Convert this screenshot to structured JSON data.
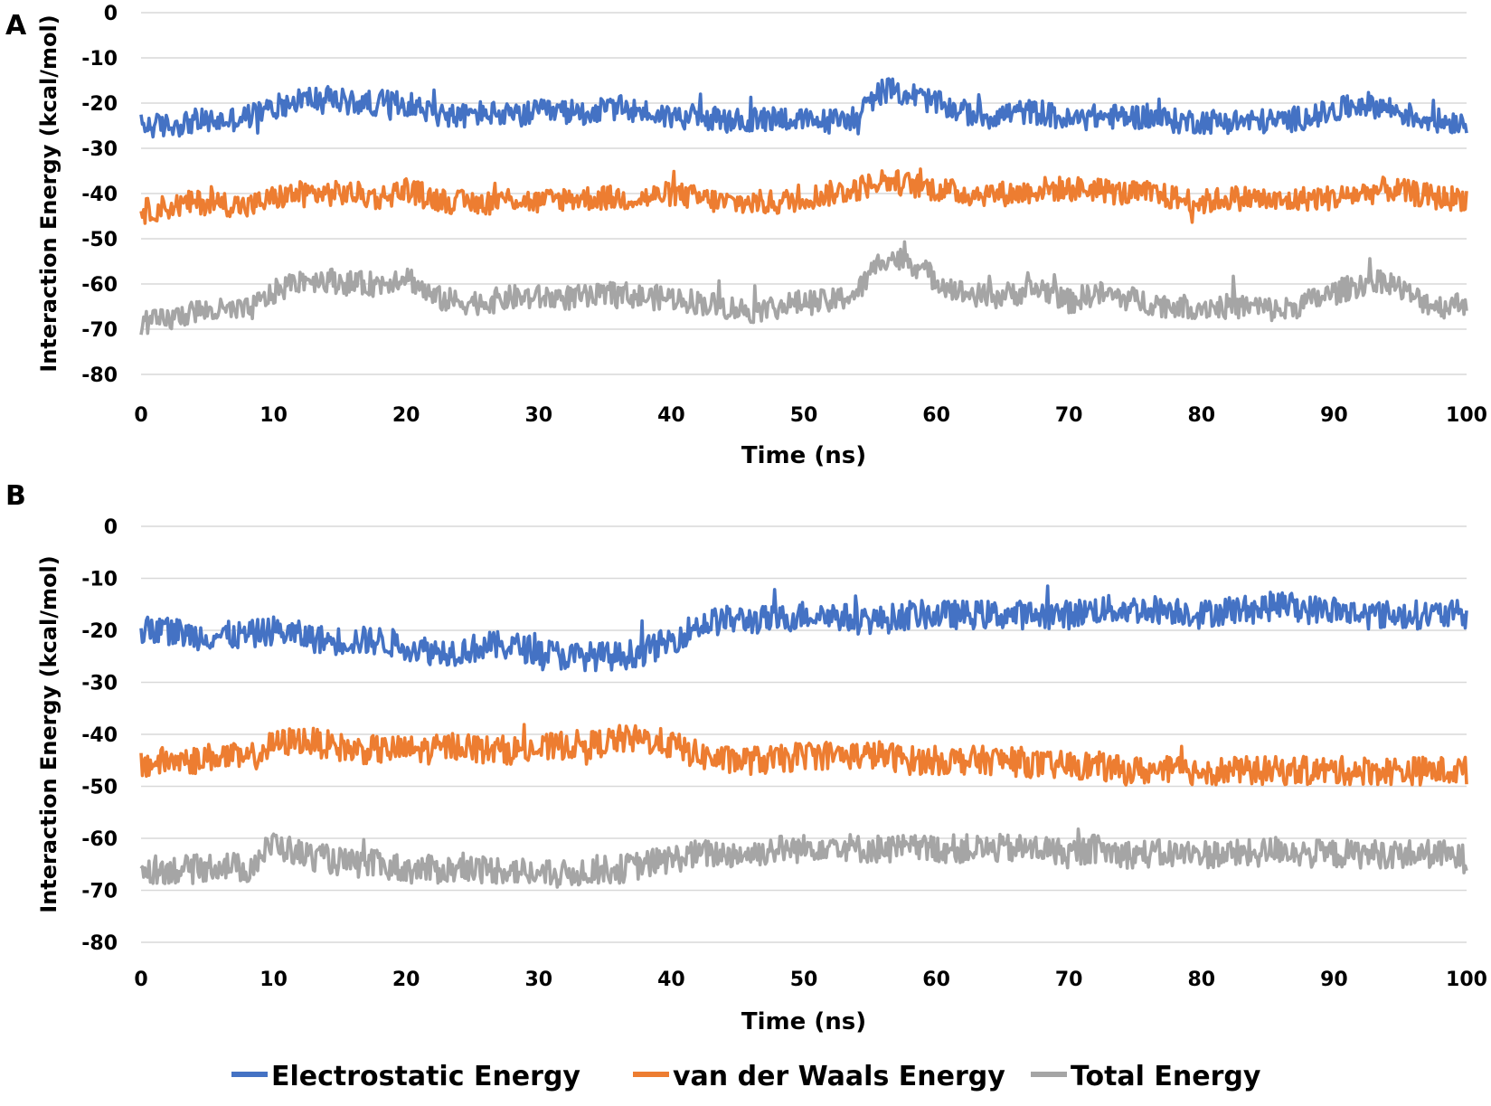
{
  "chart_data": [
    {
      "type": "line",
      "panel_label": "A",
      "xlabel": "Time (ns)",
      "ylabel": "Interaction Energy (kcal/mol)",
      "xlim": [
        0,
        100
      ],
      "ylim": [
        -80,
        0
      ],
      "x_ticks": [
        "0",
        "10",
        "20",
        "30",
        "40",
        "50",
        "60",
        "70",
        "80",
        "90",
        "100"
      ],
      "y_ticks": [
        "0",
        "-10",
        "-20",
        "-30",
        "-40",
        "-50",
        "-60",
        "-70",
        "-80"
      ],
      "grid": true,
      "series": [
        {
          "name": "Electrostatic Energy",
          "color": "#4472C4",
          "x": [
            0,
            2,
            4,
            6,
            8,
            10,
            12,
            14,
            16,
            18,
            20,
            22,
            24,
            26,
            28,
            30,
            32,
            34,
            36,
            38,
            40,
            42,
            44,
            46,
            48,
            50,
            52,
            54,
            56,
            58,
            60,
            62,
            64,
            66,
            68,
            70,
            72,
            74,
            76,
            78,
            80,
            82,
            84,
            86,
            88,
            90,
            92,
            94,
            96,
            98,
            100
          ],
          "values": [
            -25,
            -25,
            -24,
            -24,
            -23,
            -21,
            -19,
            -19,
            -20,
            -20,
            -20,
            -22,
            -23,
            -22,
            -23,
            -22,
            -22,
            -22,
            -21,
            -22,
            -23,
            -23,
            -24,
            -24,
            -23,
            -24,
            -24,
            -23,
            -17,
            -18,
            -20,
            -22,
            -23,
            -22,
            -22,
            -24,
            -23,
            -23,
            -23,
            -24,
            -24,
            -24,
            -24,
            -24,
            -23,
            -22,
            -20,
            -21,
            -23,
            -24,
            -24
          ]
        },
        {
          "name": "van der Waals Energy",
          "color": "#ED7D31",
          "x": [
            0,
            2,
            4,
            6,
            8,
            10,
            12,
            14,
            16,
            18,
            20,
            22,
            24,
            26,
            28,
            30,
            32,
            34,
            36,
            38,
            40,
            42,
            44,
            46,
            48,
            50,
            52,
            54,
            56,
            58,
            60,
            62,
            64,
            66,
            68,
            70,
            72,
            74,
            76,
            78,
            80,
            82,
            84,
            86,
            88,
            90,
            92,
            94,
            96,
            98,
            100
          ],
          "values": [
            -44,
            -43,
            -42,
            -42,
            -43,
            -41,
            -40,
            -40,
            -40,
            -41,
            -39,
            -41,
            -42,
            -42,
            -41,
            -42,
            -41,
            -41,
            -41,
            -41,
            -40,
            -41,
            -42,
            -42,
            -42,
            -41,
            -40,
            -39,
            -37,
            -38,
            -39,
            -40,
            -40,
            -40,
            -39,
            -39,
            -39,
            -40,
            -40,
            -41,
            -42,
            -41,
            -41,
            -42,
            -41,
            -41,
            -40,
            -39,
            -40,
            -41,
            -41
          ]
        },
        {
          "name": "Total Energy",
          "color": "#A5A5A5",
          "x": [
            0,
            2,
            4,
            6,
            8,
            10,
            12,
            14,
            16,
            18,
            20,
            22,
            24,
            26,
            28,
            30,
            32,
            34,
            36,
            38,
            40,
            42,
            44,
            46,
            48,
            50,
            52,
            54,
            56,
            58,
            60,
            62,
            64,
            66,
            68,
            70,
            72,
            74,
            76,
            78,
            80,
            82,
            84,
            86,
            88,
            90,
            92,
            94,
            96,
            98,
            100
          ],
          "values": [
            -69,
            -68,
            -66,
            -66,
            -66,
            -62,
            -59,
            -59,
            -60,
            -60,
            -58,
            -63,
            -64,
            -64,
            -63,
            -63,
            -63,
            -63,
            -62,
            -63,
            -63,
            -64,
            -65,
            -66,
            -65,
            -64,
            -64,
            -62,
            -54,
            -55,
            -59,
            -62,
            -63,
            -62,
            -61,
            -64,
            -62,
            -63,
            -64,
            -65,
            -65,
            -65,
            -65,
            -66,
            -64,
            -62,
            -60,
            -59,
            -63,
            -65,
            -64
          ]
        }
      ]
    },
    {
      "type": "line",
      "panel_label": "B",
      "xlabel": "Time (ns)",
      "ylabel": "Interaction Energy (kcal/mol)",
      "xlim": [
        0,
        100
      ],
      "ylim": [
        -80,
        0
      ],
      "x_ticks": [
        "0",
        "10",
        "20",
        "30",
        "40",
        "50",
        "60",
        "70",
        "80",
        "90",
        "100"
      ],
      "y_ticks": [
        "0",
        "-10",
        "-20",
        "-30",
        "-40",
        "-50",
        "-60",
        "-70",
        "-80"
      ],
      "grid": true,
      "series": [
        {
          "name": "Electrostatic Energy",
          "color": "#4472C4",
          "x": [
            0,
            2,
            4,
            6,
            8,
            10,
            12,
            14,
            16,
            18,
            20,
            22,
            24,
            26,
            28,
            30,
            32,
            34,
            36,
            38,
            40,
            42,
            44,
            46,
            48,
            50,
            52,
            54,
            56,
            58,
            60,
            62,
            64,
            66,
            68,
            70,
            72,
            74,
            76,
            78,
            80,
            82,
            84,
            86,
            88,
            90,
            92,
            94,
            96,
            98,
            100
          ],
          "values": [
            -20,
            -20,
            -21,
            -21,
            -21,
            -20,
            -21,
            -22,
            -22,
            -22,
            -23,
            -24,
            -24,
            -23,
            -23,
            -24,
            -25,
            -25,
            -25,
            -24,
            -22,
            -19,
            -18,
            -18,
            -18,
            -17,
            -17,
            -18,
            -18,
            -17,
            -17,
            -17,
            -17,
            -17,
            -17,
            -17,
            -16,
            -16,
            -16,
            -16,
            -17,
            -16,
            -16,
            -15,
            -16,
            -16,
            -17,
            -17,
            -17,
            -17,
            -17
          ]
        },
        {
          "name": "van der Waals Energy",
          "color": "#ED7D31",
          "x": [
            0,
            2,
            4,
            6,
            8,
            10,
            12,
            14,
            16,
            18,
            20,
            22,
            24,
            26,
            28,
            30,
            32,
            34,
            36,
            38,
            40,
            42,
            44,
            46,
            48,
            50,
            52,
            54,
            56,
            58,
            60,
            62,
            64,
            66,
            68,
            70,
            72,
            74,
            76,
            78,
            80,
            82,
            84,
            86,
            88,
            90,
            92,
            94,
            96,
            98,
            100
          ],
          "values": [
            -46,
            -45,
            -45,
            -44,
            -45,
            -42,
            -41,
            -42,
            -43,
            -43,
            -43,
            -43,
            -42,
            -43,
            -43,
            -43,
            -42,
            -42,
            -41,
            -41,
            -42,
            -44,
            -45,
            -45,
            -45,
            -44,
            -44,
            -44,
            -44,
            -45,
            -45,
            -45,
            -45,
            -45,
            -46,
            -46,
            -46,
            -47,
            -47,
            -47,
            -47,
            -47,
            -47,
            -47,
            -47,
            -47,
            -47,
            -47,
            -47,
            -47,
            -47
          ]
        },
        {
          "name": "Total Energy",
          "color": "#A5A5A5",
          "x": [
            0,
            2,
            4,
            6,
            8,
            10,
            12,
            14,
            16,
            18,
            20,
            22,
            24,
            26,
            28,
            30,
            32,
            34,
            36,
            38,
            40,
            42,
            44,
            46,
            48,
            50,
            52,
            54,
            56,
            58,
            60,
            62,
            64,
            66,
            68,
            70,
            72,
            74,
            76,
            78,
            80,
            82,
            84,
            86,
            88,
            90,
            92,
            94,
            96,
            98,
            100
          ],
          "values": [
            -66,
            -66,
            -66,
            -65,
            -66,
            -61,
            -63,
            -64,
            -65,
            -65,
            -66,
            -66,
            -66,
            -66,
            -66,
            -67,
            -67,
            -66,
            -66,
            -65,
            -64,
            -63,
            -63,
            -63,
            -62,
            -62,
            -61,
            -62,
            -62,
            -62,
            -62,
            -62,
            -62,
            -62,
            -62,
            -63,
            -62,
            -63,
            -63,
            -63,
            -63,
            -63,
            -63,
            -62,
            -63,
            -63,
            -63,
            -63,
            -63,
            -63,
            -64
          ]
        }
      ]
    }
  ],
  "legend": {
    "items": [
      {
        "label": "Electrostatic Energy",
        "color": "#4472C4"
      },
      {
        "label": "van der Waals Energy",
        "color": "#ED7D31"
      },
      {
        "label": "Total Energy",
        "color": "#A5A5A5"
      }
    ]
  }
}
